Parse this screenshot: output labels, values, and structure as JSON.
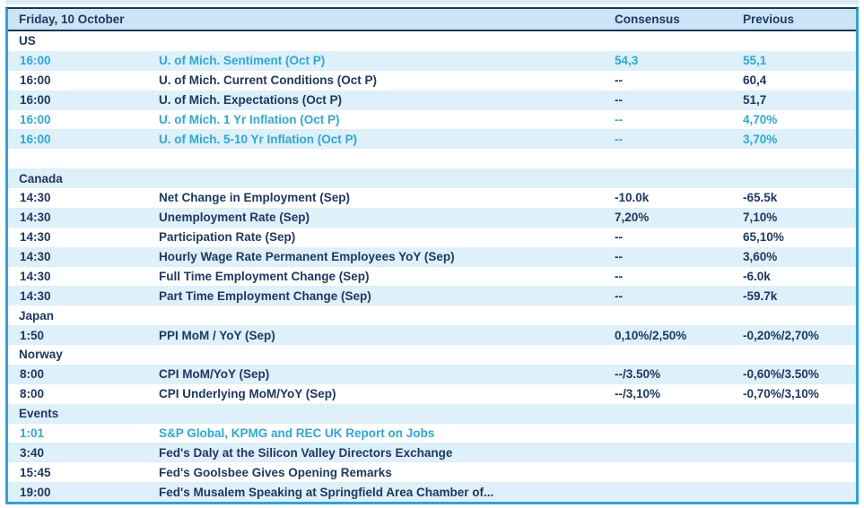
{
  "header": {
    "date_label": "Friday, 10 October",
    "consensus_label": "Consensus",
    "previous_label": "Previous"
  },
  "colors": {
    "accent_blue": "#29a9e0",
    "navy_text": "#1f3864",
    "header_bg": "#cbe5f5",
    "stripe_bg": "#def0f9",
    "outer_border": "#2da3dc",
    "header_border": "#17375e"
  },
  "rows": [
    {
      "type": "section",
      "label": "US"
    },
    {
      "type": "event",
      "time": "16:00",
      "label": "U. of Mich. Sentiment (Oct P)",
      "consensus": "54,3",
      "previous": "55,1",
      "highlight": true
    },
    {
      "type": "event",
      "time": "16:00",
      "label": "U. of Mich. Current Conditions (Oct P)",
      "consensus": "--",
      "previous": "60,4",
      "highlight": false
    },
    {
      "type": "event",
      "time": "16:00",
      "label": "U. of Mich. Expectations (Oct P)",
      "consensus": "--",
      "previous": "51,7",
      "highlight": false
    },
    {
      "type": "event",
      "time": "16:00",
      "label": "U. of Mich. 1 Yr Inflation (Oct P)",
      "consensus": "--",
      "previous": "4,70%",
      "highlight": true
    },
    {
      "type": "event",
      "time": "16:00",
      "label": "U. of Mich. 5-10 Yr Inflation (Oct P)",
      "consensus": "--",
      "previous": "3,70%",
      "highlight": true
    },
    {
      "type": "empty"
    },
    {
      "type": "section",
      "label": "Canada"
    },
    {
      "type": "event",
      "time": "14:30",
      "label": "Net Change in Employment (Sep)",
      "consensus": "-10.0k",
      "previous": "-65.5k",
      "highlight": false
    },
    {
      "type": "event",
      "time": "14:30",
      "label": "Unemployment Rate (Sep)",
      "consensus": "7,20%",
      "previous": "7,10%",
      "highlight": false
    },
    {
      "type": "event",
      "time": "14:30",
      "label": "Participation Rate (Sep)",
      "consensus": "--",
      "previous": "65,10%",
      "highlight": false
    },
    {
      "type": "event",
      "time": "14:30",
      "label": "Hourly Wage Rate Permanent Employees YoY (Sep)",
      "consensus": "--",
      "previous": "3,60%",
      "highlight": false
    },
    {
      "type": "event",
      "time": "14:30",
      "label": "Full Time Employment Change (Sep)",
      "consensus": "--",
      "previous": "-6.0k",
      "highlight": false
    },
    {
      "type": "event",
      "time": "14:30",
      "label": "Part Time Employment Change (Sep)",
      "consensus": "--",
      "previous": "-59.7k",
      "highlight": false
    },
    {
      "type": "section",
      "label": "Japan"
    },
    {
      "type": "event",
      "time": "1:50",
      "label": "PPI MoM / YoY (Sep)",
      "consensus": "0,10%/2,50%",
      "previous": "-0,20%/2,70%",
      "highlight": false
    },
    {
      "type": "section",
      "label": "Norway"
    },
    {
      "type": "event",
      "time": "8:00",
      "label": "CPI MoM/YoY (Sep)",
      "consensus": "--/3.50%",
      "previous": "-0,60%/3.50%",
      "highlight": false
    },
    {
      "type": "event",
      "time": "8:00",
      "label": "CPI Underlying MoM/YoY (Sep)",
      "consensus": "--/3,10%",
      "previous": "-0,70%/3,10%",
      "highlight": false
    },
    {
      "type": "section",
      "label": "Events"
    },
    {
      "type": "event",
      "time": "1:01",
      "label": "S&P Global, KPMG and REC UK Report on Jobs",
      "consensus": "",
      "previous": "",
      "highlight": true
    },
    {
      "type": "event",
      "time": "3:40",
      "label": "Fed's Daly at the Silicon Valley Directors Exchange",
      "consensus": "",
      "previous": "",
      "highlight": false
    },
    {
      "type": "event",
      "time": "15:45",
      "label": "Fed's Goolsbee Gives Opening Remarks",
      "consensus": "",
      "previous": "",
      "highlight": false
    },
    {
      "type": "event",
      "time": "19:00",
      "label": "Fed's Musalem Speaking at Springfield Area Chamber of...",
      "consensus": "",
      "previous": "",
      "highlight": false
    }
  ]
}
